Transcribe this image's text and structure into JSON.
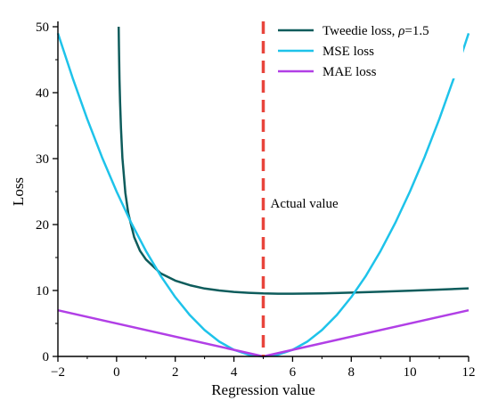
{
  "chart_data": {
    "type": "line",
    "xlabel": "Regression value",
    "ylabel": "Loss",
    "xlim": [
      -2,
      12
    ],
    "ylim": [
      0,
      50
    ],
    "x_ticks": [
      -2,
      0,
      2,
      4,
      6,
      8,
      10,
      12
    ],
    "y_ticks": [
      0,
      10,
      20,
      30,
      40,
      50
    ],
    "grid": false,
    "legend_position": "top-right",
    "actual_value": 5,
    "annotation": "Actual value",
    "series": [
      {
        "name": "Tweedie loss, ρ=1.5",
        "legend_prefix": "Tweedie loss, ",
        "legend_symbol": "ρ",
        "legend_suffix": "=1.5",
        "color": "#0e5c5c",
        "x": [
          0.07,
          0.08,
          0.1,
          0.12,
          0.15,
          0.2,
          0.3,
          0.4,
          0.6,
          0.8,
          1.0,
          1.5,
          2.0,
          2.5,
          3.0,
          3.5,
          4.0,
          4.5,
          5.0,
          5.5,
          6.0,
          7.0,
          8.0,
          9.0,
          10.0,
          11.0,
          12.0
        ],
        "y": [
          50.0,
          47.0,
          42.1,
          38.5,
          34.6,
          30.1,
          24.8,
          21.7,
          18.1,
          16.0,
          14.7,
          12.6,
          11.5,
          10.8,
          10.3,
          10.0,
          9.79,
          9.65,
          9.56,
          9.52,
          9.51,
          9.56,
          9.67,
          9.81,
          9.97,
          10.14,
          10.32
        ]
      },
      {
        "name": "MSE loss",
        "color": "#1ec3ea",
        "x": [
          -2,
          -1.5,
          -1,
          -0.5,
          0,
          0.5,
          1,
          1.5,
          2,
          2.5,
          3,
          3.5,
          4,
          4.5,
          5,
          5.5,
          6,
          6.5,
          7,
          7.5,
          8,
          8.5,
          9,
          9.5,
          10,
          10.5,
          11,
          11.5,
          12
        ],
        "y": [
          49,
          42.25,
          36,
          30.25,
          25,
          20.25,
          16,
          12.25,
          9,
          6.25,
          4,
          2.25,
          1,
          0.25,
          0,
          0.25,
          1,
          2.25,
          4,
          6.25,
          9,
          12.25,
          16,
          20.25,
          25,
          30.25,
          36,
          42.25,
          49
        ]
      },
      {
        "name": "MAE loss",
        "color": "#b13fe6",
        "x": [
          -2,
          5,
          12
        ],
        "y": [
          7,
          0,
          7
        ]
      }
    ]
  }
}
